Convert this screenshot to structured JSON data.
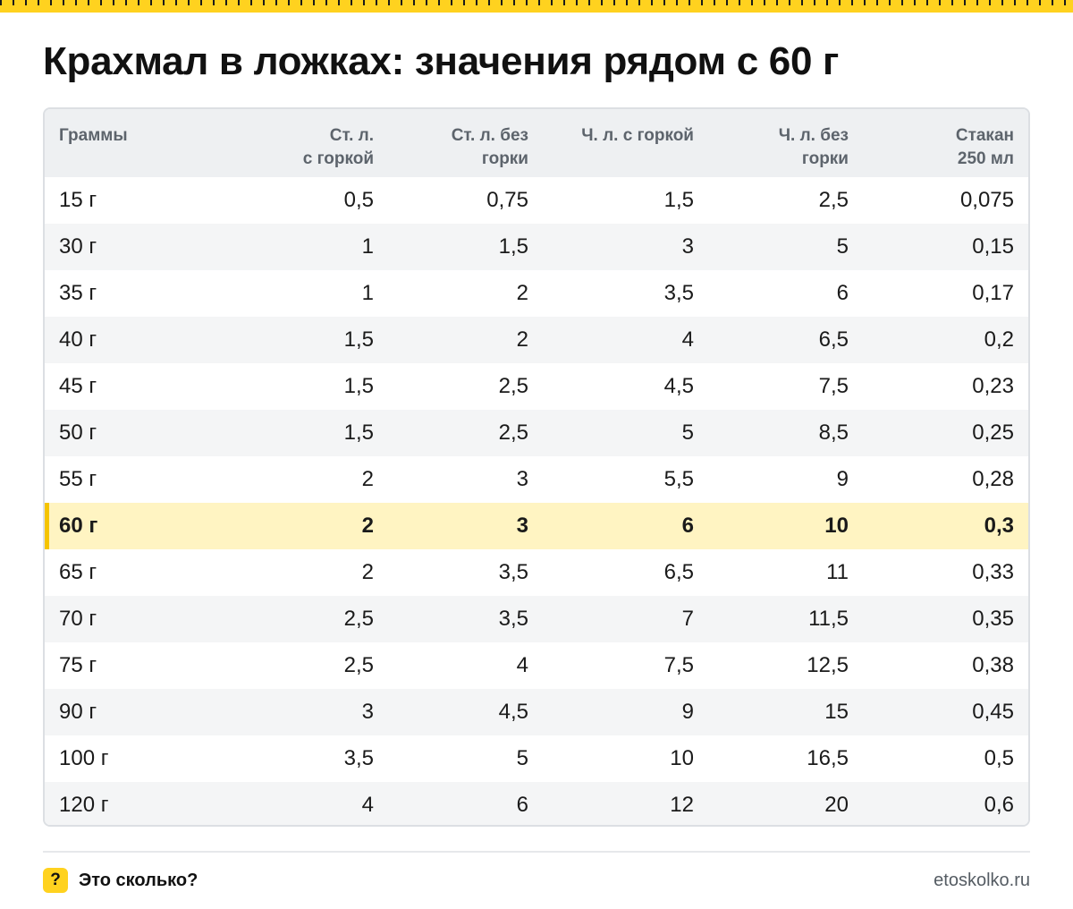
{
  "title": "Крахмал в ложках: значения рядом с 60 г",
  "table": {
    "headers": [
      "Граммы",
      "Ст. л.\nс горкой",
      "Ст. л. без\nгорки",
      "Ч. л. с горкой",
      "Ч. л. без\nгорки",
      "Стакан\n250 мл"
    ],
    "highlight_row": 7,
    "rows": [
      [
        "15 г",
        "0,5",
        "0,75",
        "1,5",
        "2,5",
        "0,075"
      ],
      [
        "30 г",
        "1",
        "1,5",
        "3",
        "5",
        "0,15"
      ],
      [
        "35 г",
        "1",
        "2",
        "3,5",
        "6",
        "0,17"
      ],
      [
        "40 г",
        "1,5",
        "2",
        "4",
        "6,5",
        "0,2"
      ],
      [
        "45 г",
        "1,5",
        "2,5",
        "4,5",
        "7,5",
        "0,23"
      ],
      [
        "50 г",
        "1,5",
        "2,5",
        "5",
        "8,5",
        "0,25"
      ],
      [
        "55 г",
        "2",
        "3",
        "5,5",
        "9",
        "0,28"
      ],
      [
        "60 г",
        "2",
        "3",
        "6",
        "10",
        "0,3"
      ],
      [
        "65 г",
        "2",
        "3,5",
        "6,5",
        "11",
        "0,33"
      ],
      [
        "70 г",
        "2,5",
        "3,5",
        "7",
        "11,5",
        "0,35"
      ],
      [
        "75 г",
        "2,5",
        "4",
        "7,5",
        "12,5",
        "0,38"
      ],
      [
        "90 г",
        "3",
        "4,5",
        "9",
        "15",
        "0,45"
      ],
      [
        "100 г",
        "3,5",
        "5",
        "10",
        "16,5",
        "0,5"
      ],
      [
        "120 г",
        "4",
        "6",
        "12",
        "20",
        "0,6"
      ]
    ]
  },
  "footer": {
    "badge": "?",
    "brand": "Это сколько?",
    "site": "etoskolko.ru"
  },
  "colors": {
    "accent": "#ffd21f",
    "highlight_row_bg": "#fff4c2",
    "highlight_marker": "#f5c400",
    "header_bg": "#eef0f2"
  }
}
